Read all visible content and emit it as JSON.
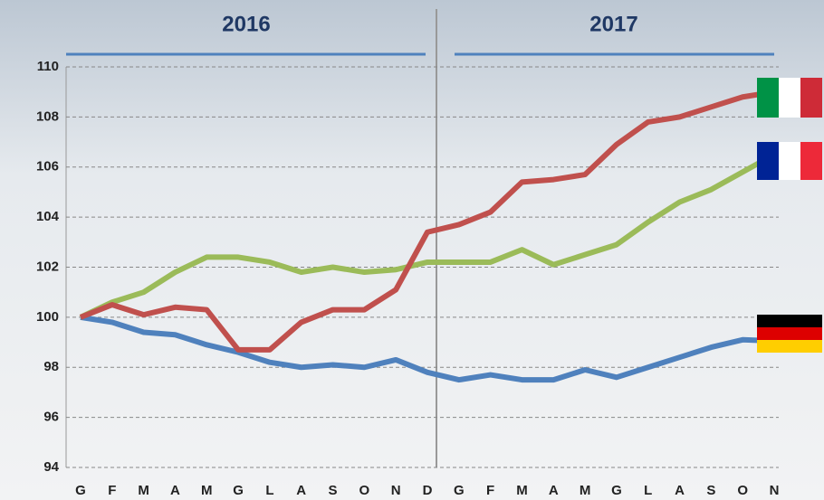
{
  "chart_data": {
    "type": "line",
    "year_labels": [
      "2016",
      "2017"
    ],
    "categories": [
      "G",
      "F",
      "M",
      "A",
      "M",
      "G",
      "L",
      "A",
      "S",
      "O",
      "N",
      "D",
      "G",
      "F",
      "M",
      "A",
      "M",
      "G",
      "L",
      "A",
      "S",
      "O",
      "N"
    ],
    "series": [
      {
        "color": "#4f81bd",
        "values": [
          100,
          99.8,
          99.4,
          99.3,
          98.9,
          98.6,
          98.2,
          98.0,
          98.1,
          98.0,
          98.3,
          97.8,
          97.5,
          97.7,
          97.5,
          97.5,
          97.9,
          97.6,
          98.0,
          98.4,
          98.8,
          99.1,
          99.05
        ]
      },
      {
        "color": "#9bbb59",
        "values": [
          100,
          100.6,
          101.0,
          101.8,
          102.4,
          102.4,
          102.2,
          101.8,
          102.0,
          101.8,
          101.9,
          102.2,
          102.2,
          102.2,
          102.7,
          102.1,
          102.5,
          102.9,
          103.8,
          104.6,
          105.1,
          105.8,
          106.5
        ]
      },
      {
        "color": "#c0504d",
        "values": [
          100,
          100.5,
          100.1,
          100.4,
          100.3,
          98.7,
          98.7,
          99.8,
          100.3,
          100.3,
          101.1,
          103.4,
          103.7,
          104.2,
          105.4,
          105.5,
          105.7,
          106.9,
          107.8,
          108.0,
          108.4,
          108.8,
          109.0
        ]
      }
    ],
    "ylim": [
      94,
      110
    ],
    "yticks": [
      94,
      96,
      98,
      100,
      102,
      104,
      106,
      108,
      110
    ],
    "grid": true
  }
}
